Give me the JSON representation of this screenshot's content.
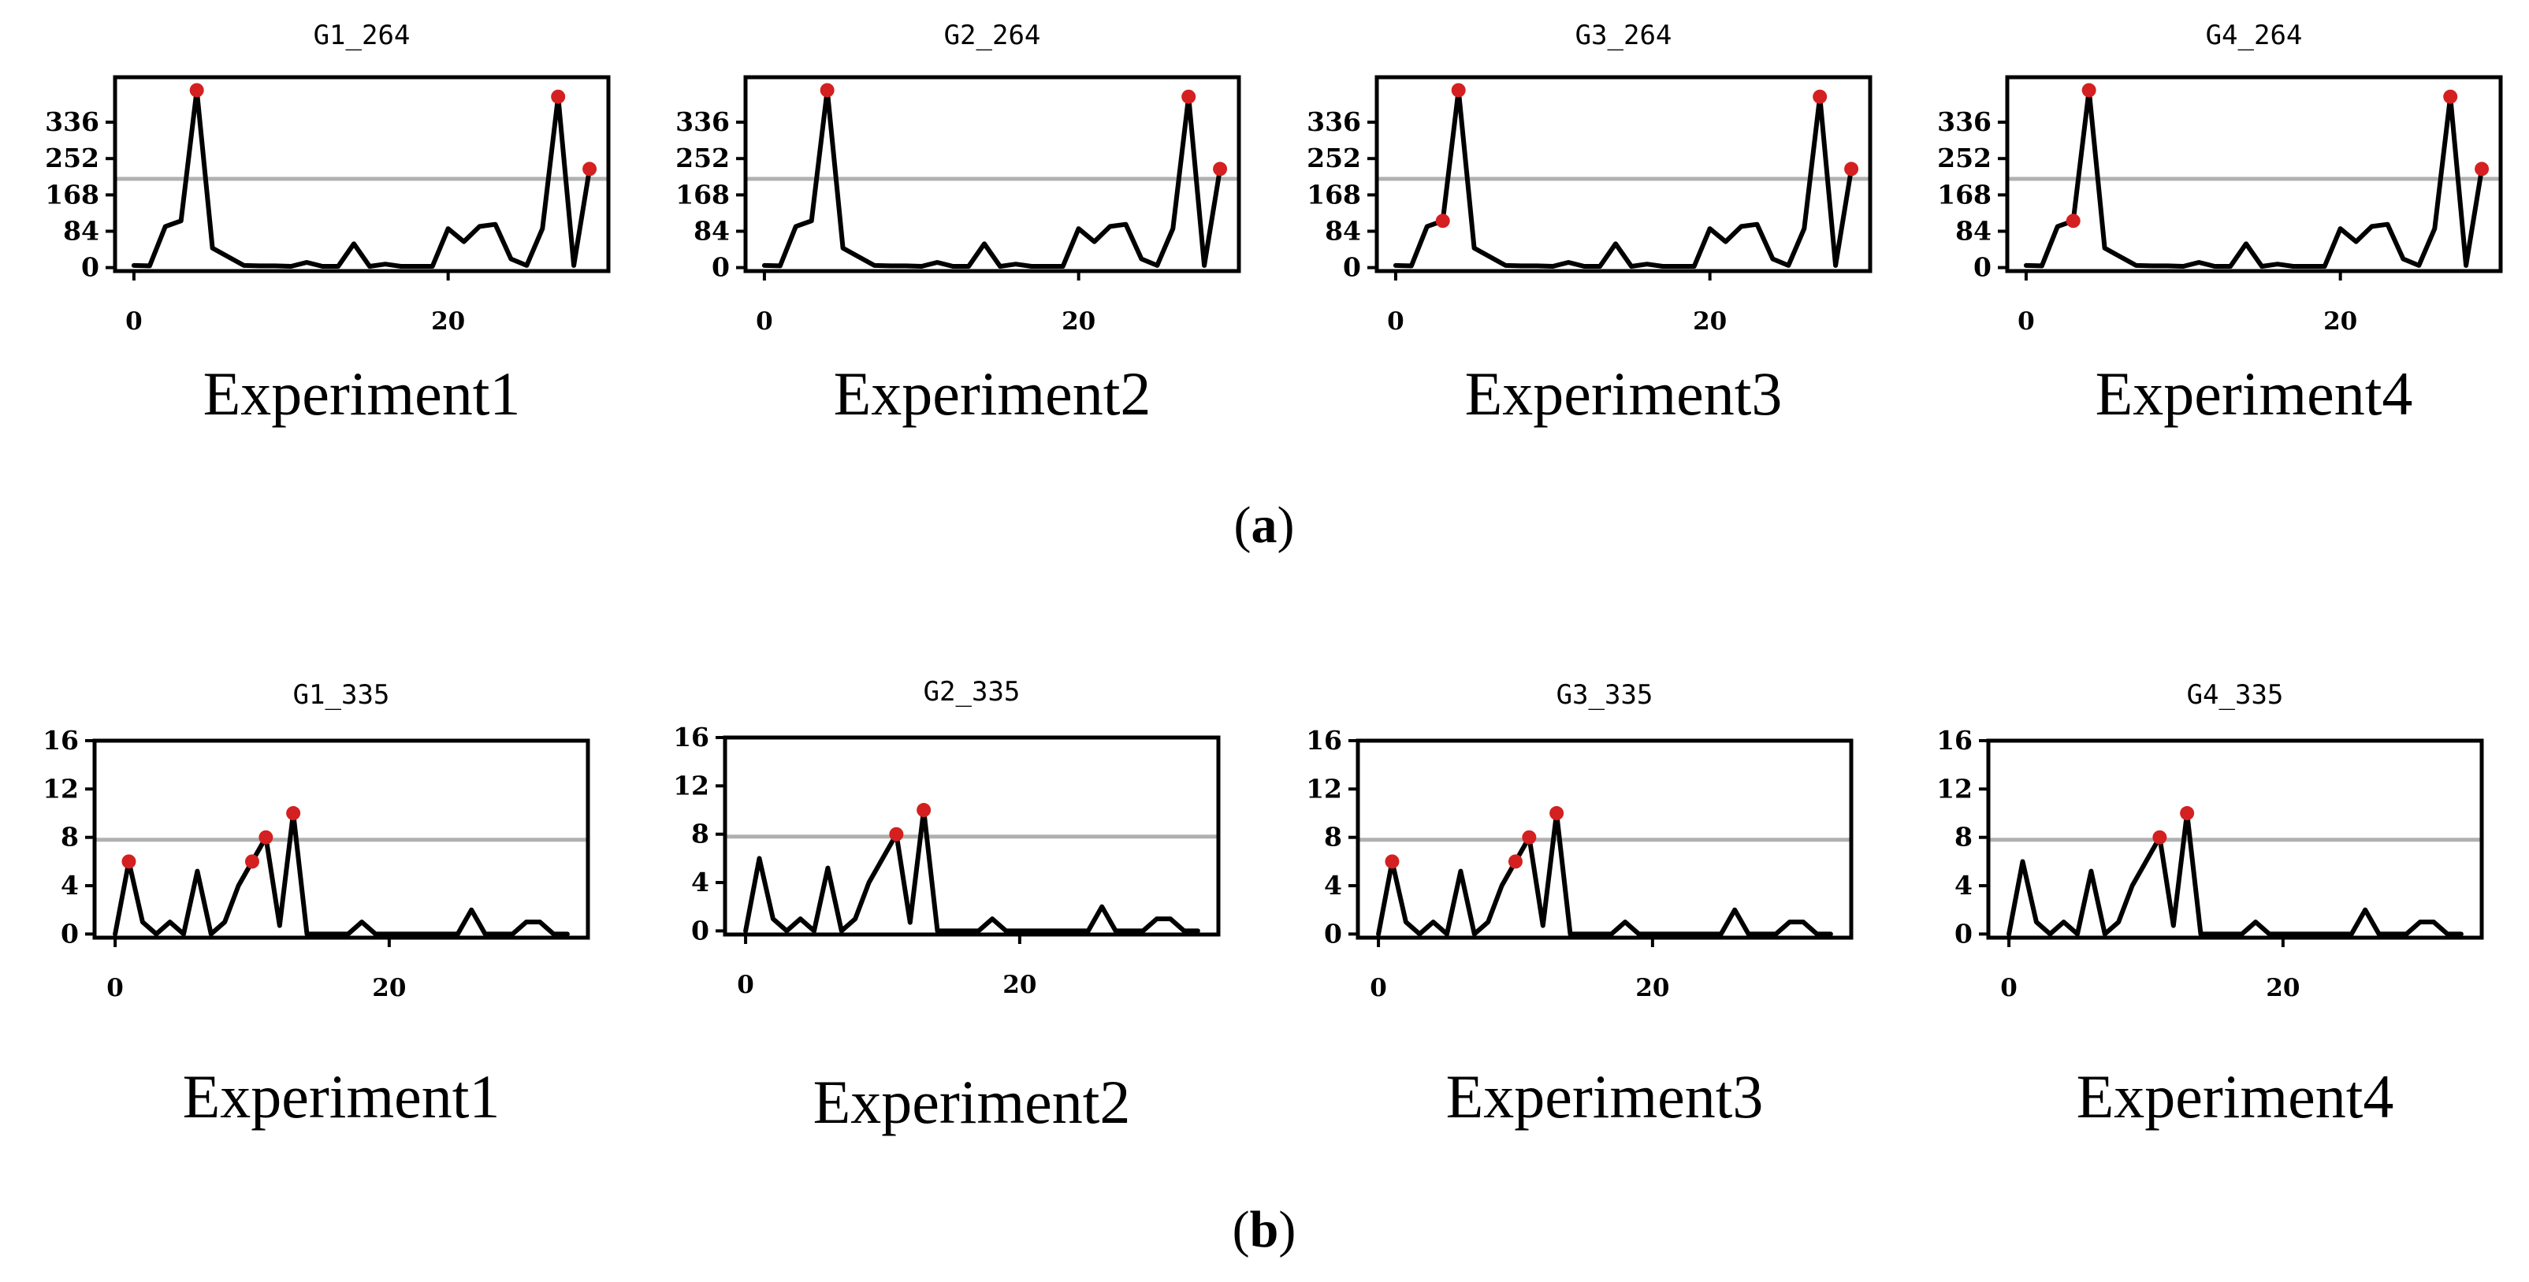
{
  "chart_data": [
    {
      "type": "line",
      "group": "a",
      "title": "G1_264",
      "caption": "Experiment1",
      "x": [
        0,
        1,
        2,
        3,
        4,
        5,
        6,
        7,
        8,
        9,
        10,
        11,
        12,
        13,
        14,
        15,
        16,
        17,
        18,
        19,
        20,
        21,
        22,
        23,
        24,
        25,
        26,
        27,
        28,
        29
      ],
      "values": [
        5,
        4,
        95,
        108,
        410,
        45,
        25,
        5,
        4,
        4,
        3,
        12,
        3,
        3,
        55,
        3,
        8,
        3,
        3,
        3,
        90,
        60,
        95,
        100,
        20,
        5,
        90,
        395,
        5,
        228
      ],
      "markers": [
        4,
        27,
        29
      ],
      "threshold": 205,
      "ylim": [
        -8,
        440
      ],
      "xlim": [
        -1.2,
        30.2
      ],
      "yticks": [
        0,
        84,
        168,
        252,
        336
      ],
      "ytick_labels": [
        "0",
        "84",
        "168",
        "252",
        "336"
      ],
      "xticks": [
        0,
        20
      ],
      "xtick_labels": [
        "0",
        "20"
      ]
    },
    {
      "type": "line",
      "group": "a",
      "title": "G2_264",
      "caption": "Experiment2",
      "x": [
        0,
        1,
        2,
        3,
        4,
        5,
        6,
        7,
        8,
        9,
        10,
        11,
        12,
        13,
        14,
        15,
        16,
        17,
        18,
        19,
        20,
        21,
        22,
        23,
        24,
        25,
        26,
        27,
        28,
        29
      ],
      "values": [
        5,
        4,
        95,
        108,
        410,
        45,
        25,
        5,
        4,
        4,
        3,
        12,
        3,
        3,
        55,
        3,
        8,
        3,
        3,
        3,
        90,
        60,
        95,
        100,
        20,
        5,
        90,
        395,
        5,
        228
      ],
      "markers": [
        4,
        27,
        29
      ],
      "threshold": 205,
      "ylim": [
        -8,
        440
      ],
      "xlim": [
        -1.2,
        30.2
      ],
      "yticks": [
        0,
        84,
        168,
        252,
        336
      ],
      "ytick_labels": [
        "0",
        "84",
        "168",
        "252",
        "336"
      ],
      "xticks": [
        0,
        20
      ],
      "xtick_labels": [
        "0",
        "20"
      ]
    },
    {
      "type": "line",
      "group": "a",
      "title": "G3_264",
      "caption": "Experiment3",
      "x": [
        0,
        1,
        2,
        3,
        4,
        5,
        6,
        7,
        8,
        9,
        10,
        11,
        12,
        13,
        14,
        15,
        16,
        17,
        18,
        19,
        20,
        21,
        22,
        23,
        24,
        25,
        26,
        27,
        28,
        29
      ],
      "values": [
        5,
        4,
        95,
        108,
        410,
        45,
        25,
        5,
        4,
        4,
        3,
        12,
        3,
        3,
        55,
        3,
        8,
        3,
        3,
        3,
        90,
        60,
        95,
        100,
        20,
        5,
        90,
        395,
        5,
        228
      ],
      "markers": [
        3,
        4,
        27,
        29
      ],
      "threshold": 205,
      "ylim": [
        -8,
        440
      ],
      "xlim": [
        -1.2,
        30.2
      ],
      "yticks": [
        0,
        84,
        168,
        252,
        336
      ],
      "ytick_labels": [
        "0",
        "84",
        "168",
        "252",
        "336"
      ],
      "xticks": [
        0,
        20
      ],
      "xtick_labels": [
        "0",
        "20"
      ]
    },
    {
      "type": "line",
      "group": "a",
      "title": "G4_264",
      "caption": "Experiment4",
      "x": [
        0,
        1,
        2,
        3,
        4,
        5,
        6,
        7,
        8,
        9,
        10,
        11,
        12,
        13,
        14,
        15,
        16,
        17,
        18,
        19,
        20,
        21,
        22,
        23,
        24,
        25,
        26,
        27,
        28,
        29
      ],
      "values": [
        5,
        4,
        95,
        108,
        410,
        45,
        25,
        5,
        4,
        4,
        3,
        12,
        3,
        3,
        55,
        3,
        8,
        3,
        3,
        3,
        90,
        60,
        95,
        100,
        20,
        5,
        90,
        395,
        5,
        228
      ],
      "markers": [
        3,
        4,
        27,
        29
      ],
      "threshold": 205,
      "ylim": [
        -8,
        440
      ],
      "xlim": [
        -1.2,
        30.2
      ],
      "yticks": [
        0,
        84,
        168,
        252,
        336
      ],
      "ytick_labels": [
        "0",
        "84",
        "168",
        "252",
        "336"
      ],
      "xticks": [
        0,
        20
      ],
      "xtick_labels": [
        "0",
        "20"
      ]
    },
    {
      "type": "line",
      "group": "b",
      "title": "G1_335",
      "caption": "Experiment1",
      "x": [
        0,
        1,
        2,
        3,
        4,
        5,
        6,
        7,
        8,
        9,
        10,
        11,
        12,
        13,
        14,
        15,
        16,
        17,
        18,
        19,
        20,
        21,
        22,
        23,
        24,
        25,
        26,
        27,
        28,
        29,
        30,
        31,
        32,
        33
      ],
      "values": [
        0,
        6,
        1,
        0,
        1,
        0,
        5.2,
        0,
        1,
        4,
        6,
        8,
        0.7,
        10,
        0,
        0,
        0,
        0,
        1,
        0,
        0,
        0,
        0,
        0,
        0,
        0,
        2,
        0,
        0,
        0,
        1,
        1,
        0,
        0
      ],
      "markers": [
        1,
        10,
        11,
        13
      ],
      "threshold": 7.8,
      "ylim": [
        -0.3,
        16
      ],
      "xlim": [
        -1.5,
        34.5
      ],
      "yticks": [
        0,
        4,
        8,
        12,
        16
      ],
      "ytick_labels": [
        "0",
        "4",
        "8",
        "12",
        "16"
      ],
      "xticks": [
        0,
        20
      ],
      "xtick_labels": [
        "0",
        "20"
      ]
    },
    {
      "type": "line",
      "group": "b",
      "title": "G2_335",
      "caption": "Experiment2",
      "x": [
        0,
        1,
        2,
        3,
        4,
        5,
        6,
        7,
        8,
        9,
        10,
        11,
        12,
        13,
        14,
        15,
        16,
        17,
        18,
        19,
        20,
        21,
        22,
        23,
        24,
        25,
        26,
        27,
        28,
        29,
        30,
        31,
        32,
        33
      ],
      "values": [
        0,
        6,
        1,
        0,
        1,
        0,
        5.2,
        0,
        1,
        4,
        6,
        8,
        0.7,
        10,
        0,
        0,
        0,
        0,
        1,
        0,
        0,
        0,
        0,
        0,
        0,
        0,
        2,
        0,
        0,
        0,
        1,
        1,
        0,
        0
      ],
      "markers": [
        11,
        13
      ],
      "threshold": 7.8,
      "ylim": [
        -0.3,
        16
      ],
      "xlim": [
        -1.5,
        34.5
      ],
      "yticks": [
        0,
        4,
        8,
        12,
        16
      ],
      "ytick_labels": [
        "0",
        "4",
        "8",
        "12",
        "16"
      ],
      "xticks": [
        0,
        20
      ],
      "xtick_labels": [
        "0",
        "20"
      ]
    },
    {
      "type": "line",
      "group": "b",
      "title": "G3_335",
      "caption": "Experiment3",
      "x": [
        0,
        1,
        2,
        3,
        4,
        5,
        6,
        7,
        8,
        9,
        10,
        11,
        12,
        13,
        14,
        15,
        16,
        17,
        18,
        19,
        20,
        21,
        22,
        23,
        24,
        25,
        26,
        27,
        28,
        29,
        30,
        31,
        32,
        33
      ],
      "values": [
        0,
        6,
        1,
        0,
        1,
        0,
        5.2,
        0,
        1,
        4,
        6,
        8,
        0.7,
        10,
        0,
        0,
        0,
        0,
        1,
        0,
        0,
        0,
        0,
        0,
        0,
        0,
        2,
        0,
        0,
        0,
        1,
        1,
        0,
        0
      ],
      "markers": [
        1,
        10,
        11,
        13
      ],
      "threshold": 7.8,
      "ylim": [
        -0.3,
        16
      ],
      "xlim": [
        -1.5,
        34.5
      ],
      "yticks": [
        0,
        4,
        8,
        12,
        16
      ],
      "ytick_labels": [
        "0",
        "4",
        "8",
        "12",
        "16"
      ],
      "xticks": [
        0,
        20
      ],
      "xtick_labels": [
        "0",
        "20"
      ]
    },
    {
      "type": "line",
      "group": "b",
      "title": "G4_335",
      "caption": "Experiment4",
      "x": [
        0,
        1,
        2,
        3,
        4,
        5,
        6,
        7,
        8,
        9,
        10,
        11,
        12,
        13,
        14,
        15,
        16,
        17,
        18,
        19,
        20,
        21,
        22,
        23,
        24,
        25,
        26,
        27,
        28,
        29,
        30,
        31,
        32,
        33
      ],
      "values": [
        0,
        6,
        1,
        0,
        1,
        0,
        5.2,
        0,
        1,
        4,
        6,
        8,
        0.7,
        10,
        0,
        0,
        0,
        0,
        1,
        0,
        0,
        0,
        0,
        0,
        0,
        0,
        2,
        0,
        0,
        0,
        1,
        1,
        0,
        0
      ],
      "markers": [
        11,
        13
      ],
      "threshold": 7.8,
      "ylim": [
        -0.3,
        16
      ],
      "xlim": [
        -1.5,
        34.5
      ],
      "yticks": [
        0,
        4,
        8,
        12,
        16
      ],
      "ytick_labels": [
        "0",
        "4",
        "8",
        "12",
        "16"
      ],
      "xticks": [
        0,
        20
      ],
      "xtick_labels": [
        "0",
        "20"
      ]
    }
  ],
  "subfigure_labels": {
    "a": "(a)",
    "b": "(b)"
  },
  "colors": {
    "line": "#000000",
    "marker": "#d42020",
    "threshold": "#b0b0b0",
    "axes": "#000000"
  }
}
